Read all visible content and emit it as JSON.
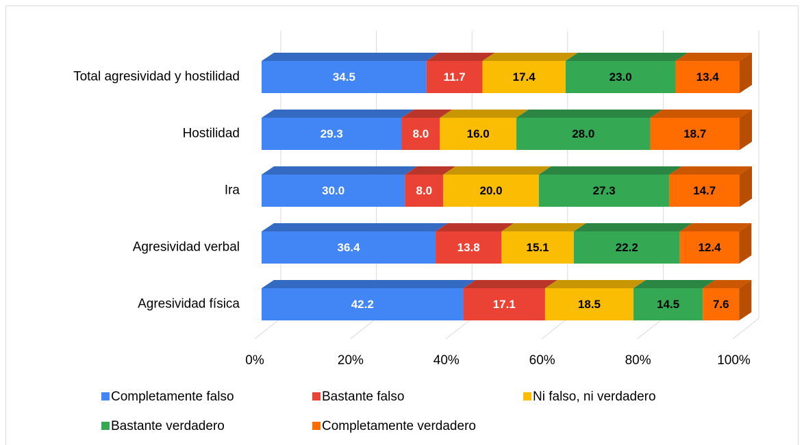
{
  "chart_data": {
    "type": "stacked-bar-horizontal-3d",
    "categories": [
      "Total agresividad y hostilidad",
      "Hostilidad",
      "Ira",
      "Agresividad verbal",
      "Agresividad física"
    ],
    "series": [
      {
        "name": "Completamente falso",
        "color": "#4285f4",
        "label_color": "#ffffff",
        "values": [
          34.5,
          29.3,
          30.0,
          36.4,
          42.2
        ],
        "value_labels": [
          "34.5",
          "29.3",
          "30.0",
          "36.4",
          "42.2"
        ]
      },
      {
        "name": "Bastante falso",
        "color": "#ea4335",
        "label_color": "#ffffff",
        "values": [
          11.7,
          8.0,
          8.0,
          13.8,
          17.1
        ],
        "value_labels": [
          "11.7",
          "8.0",
          "8.0",
          "13.8",
          "17.1"
        ]
      },
      {
        "name": "Ni falso, ni verdadero",
        "color": "#fbbc04",
        "label_color": "#000000",
        "values": [
          17.4,
          16.0,
          20.0,
          15.1,
          18.5
        ],
        "value_labels": [
          "17.4",
          "16.0",
          "20.0",
          "15.1",
          "18.5"
        ]
      },
      {
        "name": "Bastante verdadero",
        "color": "#34a853",
        "label_color": "#000000",
        "values": [
          23.0,
          28.0,
          27.3,
          22.2,
          14.5
        ],
        "value_labels": [
          "23.0",
          "28.0",
          "27.3",
          "22.2",
          "14.5"
        ]
      },
      {
        "name": "Completamente verdadero",
        "color": "#ff6d01",
        "label_color": "#000000",
        "values": [
          13.4,
          18.7,
          14.7,
          12.4,
          7.6
        ],
        "value_labels": [
          "13.4",
          "18.7",
          "14.7",
          "12.4",
          "7.6"
        ]
      }
    ],
    "xlim": [
      0,
      100
    ],
    "xticks": [
      {
        "value": 0,
        "label": "0%"
      },
      {
        "value": 20,
        "label": "20%"
      },
      {
        "value": 40,
        "label": "40%"
      },
      {
        "value": 60,
        "label": "60%"
      },
      {
        "value": 80,
        "label": "80%"
      },
      {
        "value": 100,
        "label": "100%"
      }
    ],
    "grid": true,
    "legend": "bottom"
  }
}
